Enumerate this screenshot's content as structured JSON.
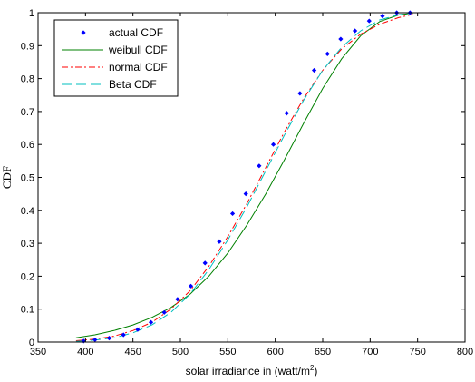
{
  "chart_data": {
    "type": "line",
    "title": "",
    "xlabel": "solar irradiance in (watt/m",
    "xlabel_superscript": "2",
    "xlabel_suffix": ")",
    "ylabel": "CDF",
    "xlim": [
      350,
      800
    ],
    "ylim": [
      0,
      1
    ],
    "xticks": [
      350,
      400,
      450,
      500,
      550,
      600,
      650,
      700,
      750,
      800
    ],
    "yticks": [
      0,
      0.1,
      0.2,
      0.3,
      0.4,
      0.5,
      0.6,
      0.7,
      0.8,
      0.9,
      1
    ],
    "xtick_labels": [
      "350",
      "400",
      "450",
      "500",
      "550",
      "600",
      "650",
      "700",
      "750",
      "800"
    ],
    "ytick_labels": [
      "0",
      "0.1",
      "0.2",
      "0.3",
      "0.4",
      "0.5",
      "0.6",
      "0.7",
      "0.8",
      "0.9",
      "1"
    ],
    "grid": false,
    "legend": "top-left",
    "series": [
      {
        "name": "actual CDF",
        "style": "markers",
        "color": "#0000ff",
        "x": [
          398,
          410,
          425,
          440,
          455,
          469,
          483,
          497,
          511,
          526,
          541,
          555,
          569,
          583,
          598,
          612,
          626,
          641,
          655,
          669,
          684,
          699,
          713,
          728,
          742
        ],
        "y": [
          0.003,
          0.007,
          0.012,
          0.022,
          0.038,
          0.06,
          0.09,
          0.13,
          0.17,
          0.24,
          0.305,
          0.39,
          0.45,
          0.535,
          0.6,
          0.695,
          0.755,
          0.825,
          0.875,
          0.92,
          0.945,
          0.975,
          0.99,
          1.0,
          1.0
        ]
      },
      {
        "name": "weibull CDF",
        "style": "solid",
        "color": "#008000",
        "x": [
          390,
          410,
          430,
          450,
          470,
          490,
          510,
          530,
          550,
          570,
          590,
          610,
          630,
          650,
          670,
          690,
          710,
          730,
          745
        ],
        "y": [
          0.013,
          0.022,
          0.035,
          0.052,
          0.075,
          0.105,
          0.145,
          0.2,
          0.27,
          0.355,
          0.45,
          0.555,
          0.665,
          0.77,
          0.86,
          0.93,
          0.973,
          0.993,
          0.999
        ]
      },
      {
        "name": "normal CDF",
        "style": "dashdot",
        "color": "#ff0000",
        "x": [
          390,
          410,
          430,
          450,
          470,
          490,
          510,
          530,
          550,
          570,
          590,
          610,
          630,
          650,
          670,
          690,
          710,
          730,
          745
        ],
        "y": [
          0.004,
          0.009,
          0.018,
          0.035,
          0.06,
          0.1,
          0.155,
          0.23,
          0.32,
          0.42,
          0.53,
          0.64,
          0.74,
          0.825,
          0.89,
          0.935,
          0.965,
          0.985,
          0.995
        ]
      },
      {
        "name": "Beta CDF",
        "style": "dashed",
        "color": "#00bfbf",
        "x": [
          390,
          410,
          430,
          450,
          470,
          490,
          510,
          530,
          550,
          570,
          590,
          610,
          630,
          650,
          670,
          690,
          710,
          730,
          745
        ],
        "y": [
          0.002,
          0.006,
          0.013,
          0.028,
          0.052,
          0.09,
          0.145,
          0.22,
          0.31,
          0.41,
          0.52,
          0.63,
          0.735,
          0.825,
          0.895,
          0.945,
          0.978,
          0.994,
          1.0
        ]
      }
    ]
  }
}
